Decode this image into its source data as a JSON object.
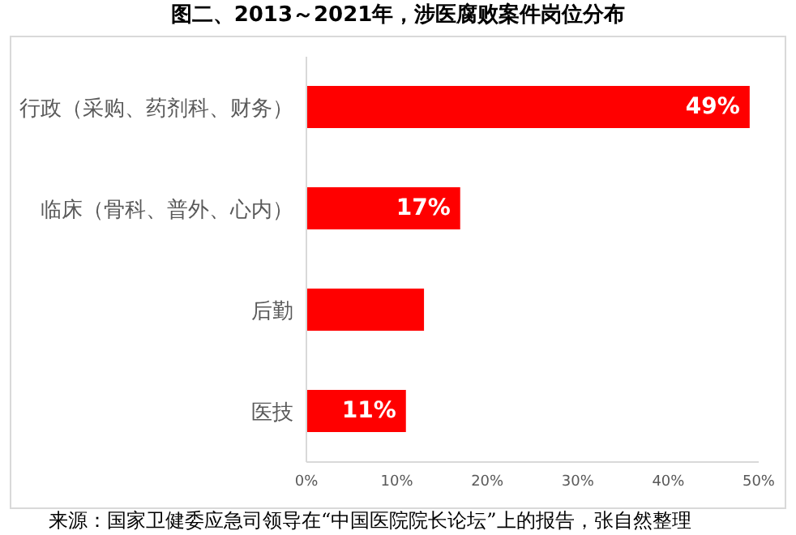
{
  "chart_data": {
    "type": "bar",
    "orientation": "horizontal",
    "title": "图二、2013～2021年，涉医腐败案件岗位分布",
    "categories": [
      "行政（采购、药剂科、财务）",
      "临床（骨科、普外、心内）",
      "后勤",
      "医技"
    ],
    "values": [
      49,
      17,
      13,
      11
    ],
    "color": "#ff0000",
    "value_labels": [
      "49%",
      "17%",
      null,
      "11%"
    ],
    "xlim": [
      0,
      50
    ],
    "xticks": [
      {
        "value": 0,
        "label": "0%"
      },
      {
        "value": 10,
        "label": "10%"
      },
      {
        "value": 20,
        "label": "20%"
      },
      {
        "value": 30,
        "label": "30%"
      },
      {
        "value": 40,
        "label": "40%"
      },
      {
        "value": 50,
        "label": "50%"
      }
    ],
    "grid": false,
    "legend": false,
    "annotations": [
      "来源：国家卫健委应急司领导在“中国医院院长论坛”上的报告，张自然整理"
    ]
  }
}
